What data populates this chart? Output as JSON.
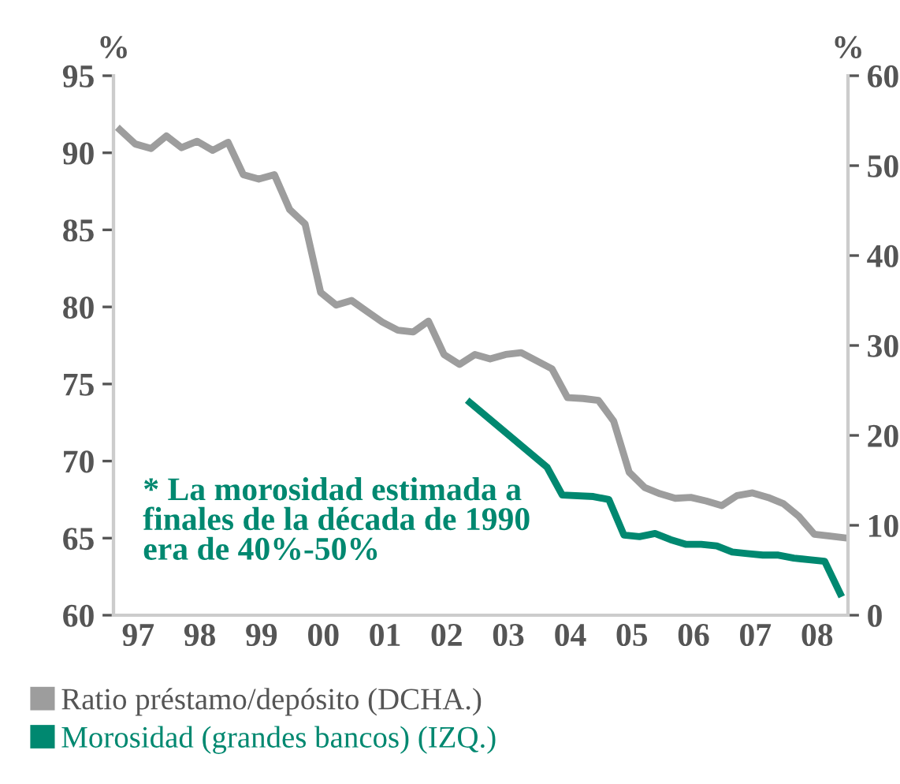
{
  "chart_data": {
    "type": "line",
    "ylabel": "%",
    "y2label": "%",
    "xlim": [
      "1997-02-05",
      "2008-12-31"
    ],
    "xticks": [
      {
        "value": "1997-07-01",
        "label": "97"
      },
      {
        "value": "1998-07-01",
        "label": "98"
      },
      {
        "value": "1999-07-01",
        "label": "99"
      },
      {
        "value": "2000-07-01",
        "label": "00"
      },
      {
        "value": "2001-07-01",
        "label": "01"
      },
      {
        "value": "2002-07-01",
        "label": "02"
      },
      {
        "value": "2003-07-01",
        "label": "03"
      },
      {
        "value": "2004-07-01",
        "label": "04"
      },
      {
        "value": "2005-07-01",
        "label": "05"
      },
      {
        "value": "2006-07-01",
        "label": "06"
      },
      {
        "value": "2007-07-01",
        "label": "07"
      },
      {
        "value": "2008-07-01",
        "label": "08"
      }
    ],
    "ylim": [
      60,
      95
    ],
    "yticks": [
      60,
      65,
      70,
      75,
      80,
      85,
      90,
      95
    ],
    "y2lim": [
      0,
      60
    ],
    "y2ticks": [
      0,
      10,
      20,
      30,
      40,
      50,
      60
    ],
    "series": [
      {
        "name": "Ratio préstamo/depósito (DCHA.)",
        "color": "#9d9d9d",
        "axis": "y2",
        "x": [
          "1997-03",
          "1997-06",
          "1997-09",
          "1997-12",
          "1998-03",
          "1998-06",
          "1998-09",
          "1998-12",
          "1999-03",
          "1999-06",
          "1999-09",
          "1999-12",
          "2000-03",
          "2000-06",
          "2000-09",
          "2000-12",
          "2001-03",
          "2001-06",
          "2001-09",
          "2001-12",
          "2002-03",
          "2002-06",
          "2002-09",
          "2002-12",
          "2003-03",
          "2003-06",
          "2003-09",
          "2003-12",
          "2004-03",
          "2004-06",
          "2004-09",
          "2004-12",
          "2005-03",
          "2005-06",
          "2005-09",
          "2005-12",
          "2006-03",
          "2006-06",
          "2006-09",
          "2006-12",
          "2007-03",
          "2007-06",
          "2007-09",
          "2007-12",
          "2008-03",
          "2008-06",
          "2008-09",
          "2008-12"
        ],
        "values": [
          54.0,
          52.4,
          51.9,
          53.3,
          52.0,
          52.7,
          51.7,
          52.6,
          49.0,
          48.5,
          49.0,
          45.1,
          43.5,
          35.9,
          34.5,
          35.0,
          33.8,
          32.6,
          31.7,
          31.5,
          32.7,
          29.0,
          27.9,
          29.0,
          28.5,
          29.0,
          29.2,
          28.3,
          27.4,
          24.2,
          24.1,
          23.9,
          21.6,
          15.9,
          14.2,
          13.5,
          13.0,
          13.1,
          12.7,
          12.2,
          13.3,
          13.6,
          13.1,
          12.4,
          11.0,
          9.0,
          8.8,
          8.6
        ]
      },
      {
        "name": "Morosidad (grandes bancos) (IZQ.)",
        "color": "#008870",
        "axis": "y",
        "x": [
          "2002-11",
          "2004-02",
          "2004-05",
          "2004-11",
          "2005-02",
          "2005-05",
          "2005-08",
          "2005-11",
          "2006-02",
          "2006-05",
          "2006-08",
          "2006-11",
          "2007-02",
          "2007-05",
          "2007-08",
          "2007-11",
          "2008-02",
          "2008-05",
          "2008-08",
          "2008-11"
        ],
        "values": [
          73.8,
          69.6,
          67.8,
          67.7,
          67.5,
          65.2,
          65.1,
          65.3,
          64.9,
          64.6,
          64.6,
          64.5,
          64.1,
          64.0,
          63.9,
          63.9,
          63.7,
          63.6,
          63.5,
          61.4
        ]
      }
    ],
    "annotations": [
      "* La morosidad estimada a\nfinales de la década de 1990\nera de 40%-50%"
    ],
    "legend": "bottom",
    "grid": false,
    "marker": "none",
    "line_style": "solid"
  }
}
